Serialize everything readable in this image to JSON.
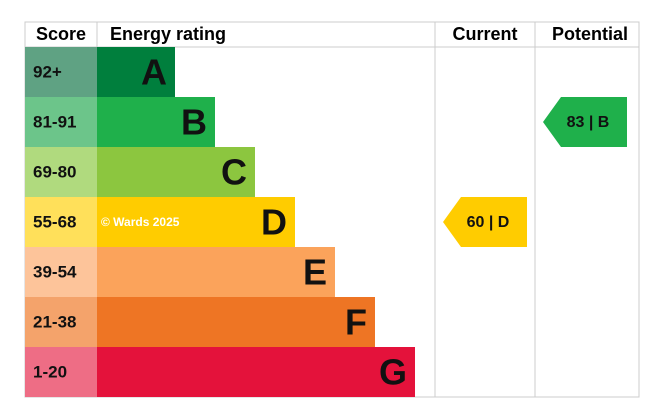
{
  "headers": {
    "score": "Score",
    "rating": "Energy rating",
    "current": "Current",
    "potential": "Potential"
  },
  "bands": [
    {
      "score": "92+",
      "letter": "A",
      "color": "#007f3d",
      "light": "#5fa283"
    },
    {
      "score": "81-91",
      "letter": "B",
      "color": "#1fb04b",
      "light": "#6cc58a"
    },
    {
      "score": "69-80",
      "letter": "C",
      "color": "#8cc63f",
      "light": "#b0da7e"
    },
    {
      "score": "55-68",
      "letter": "D",
      "color": "#ffcc00",
      "light": "#ffe05a"
    },
    {
      "score": "39-54",
      "letter": "E",
      "color": "#fba35b",
      "light": "#fdc49a"
    },
    {
      "score": "21-38",
      "letter": "F",
      "color": "#ee7524",
      "light": "#f4a36b"
    },
    {
      "score": "1-20",
      "letter": "G",
      "color": "#e4123b",
      "light": "#ee6d85"
    }
  ],
  "current": {
    "label": "60 | D"
  },
  "potential": {
    "label": "83 | B"
  },
  "watermark": "© Wards 2025"
}
